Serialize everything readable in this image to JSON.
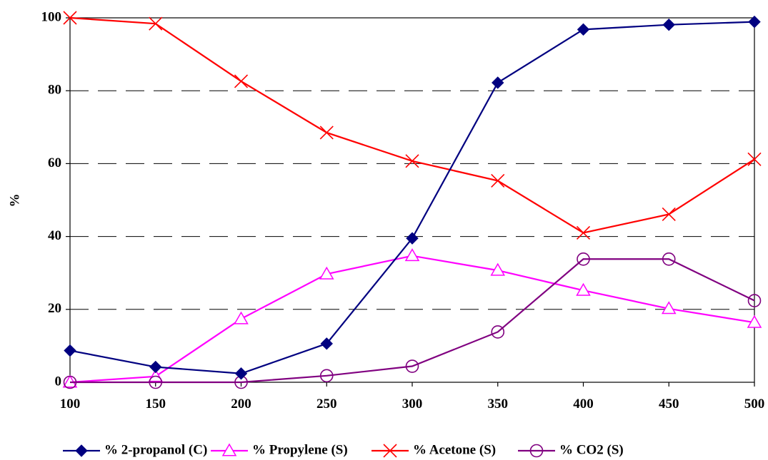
{
  "chart_data": {
    "type": "line",
    "x": [
      100,
      150,
      200,
      250,
      300,
      350,
      400,
      450,
      500
    ],
    "xlim": [
      100,
      500
    ],
    "ylim": [
      0,
      100
    ],
    "ylabel": "%",
    "xlabel": "",
    "x_ticks": [
      "100",
      "150",
      "200",
      "250",
      "300",
      "350",
      "400",
      "450",
      "500"
    ],
    "y_ticks": [
      "0",
      "20",
      "40",
      "60",
      "80",
      "100"
    ],
    "grid": "horizontal dashed",
    "legend_position": "bottom",
    "series": [
      {
        "name": "% 2-propanol (C)",
        "color": "#000080",
        "marker": "diamond",
        "values": [
          8.7,
          4.2,
          2.4,
          10.6,
          39.5,
          82.2,
          96.8,
          98.1,
          98.9
        ]
      },
      {
        "name": "% Propylene (S)",
        "color": "#FF00FF",
        "marker": "triangle",
        "values": [
          0,
          1.6,
          17.4,
          29.7,
          34.7,
          30.7,
          25.2,
          20.2,
          16.4
        ]
      },
      {
        "name": "% Acetone (S)",
        "color": "#FF0000",
        "marker": "x",
        "values": [
          100,
          98.4,
          82.6,
          68.5,
          60.7,
          55.3,
          41.0,
          46.1,
          61.2
        ]
      },
      {
        "name": "% CO2 (S)",
        "color": "#800080",
        "marker": "circle",
        "values": [
          0,
          0,
          0,
          1.8,
          4.4,
          13.8,
          33.8,
          33.8,
          22.4
        ]
      }
    ]
  }
}
